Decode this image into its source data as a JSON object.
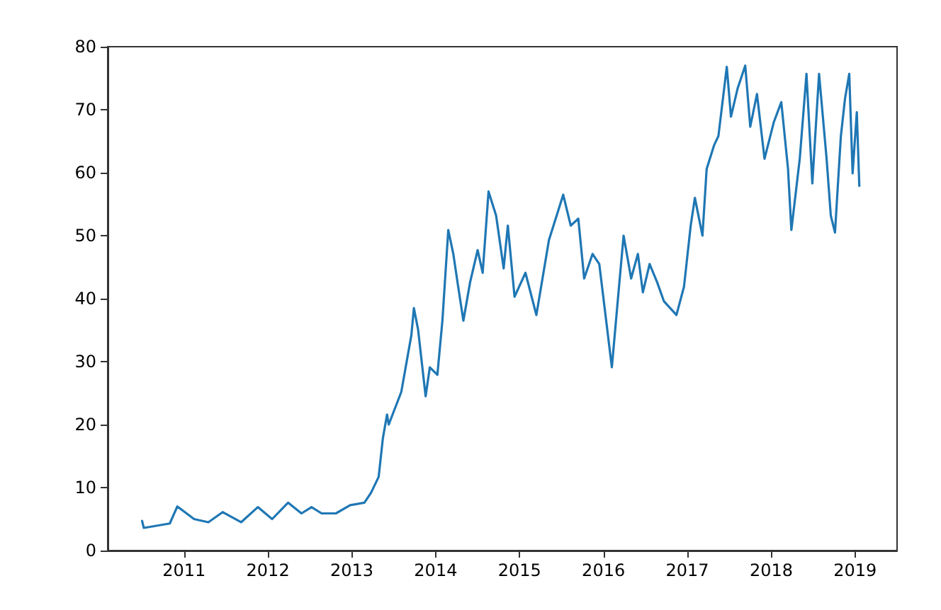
{
  "chart_data": {
    "type": "line",
    "xlim": [
      2010.09,
      2019.5
    ],
    "xticks": [
      2011,
      2012,
      2013,
      2014,
      2015,
      2016,
      2017,
      2018,
      2019
    ],
    "ylim": [
      0,
      80
    ],
    "yticks": [
      0,
      10,
      20,
      30,
      40,
      50,
      60,
      70,
      80
    ],
    "grid": false,
    "marker": "none",
    "line_style": "solid",
    "series": [
      {
        "color": "#1f77b4",
        "x": [
          2010.5,
          2010.52,
          2010.83,
          2010.92,
          2011.12,
          2011.29,
          2011.46,
          2011.68,
          2011.88,
          2012.05,
          2012.24,
          2012.4,
          2012.52,
          2012.64,
          2012.81,
          2012.98,
          2013.15,
          2013.23,
          2013.32,
          2013.37,
          2013.42,
          2013.44,
          2013.59,
          2013.71,
          2013.74,
          2013.79,
          2013.88,
          2013.93,
          2014.02,
          2014.08,
          2014.15,
          2014.21,
          2014.26,
          2014.33,
          2014.41,
          2014.5,
          2014.56,
          2014.63,
          2014.72,
          2014.81,
          2014.86,
          2014.94,
          2015.07,
          2015.2,
          2015.35,
          2015.52,
          2015.61,
          2015.7,
          2015.77,
          2015.87,
          2015.95,
          2016.1,
          2016.19,
          2016.24,
          2016.33,
          2016.41,
          2016.47,
          2016.55,
          2016.64,
          2016.72,
          2016.87,
          2016.96,
          2017.04,
          2017.09,
          2017.18,
          2017.23,
          2017.32,
          2017.37,
          2017.47,
          2017.52,
          2017.6,
          2017.69,
          2017.75,
          2017.83,
          2017.92,
          2018.03,
          2018.12,
          2018.2,
          2018.24,
          2018.34,
          2018.42,
          2018.49,
          2018.57,
          2018.66,
          2018.71,
          2018.76,
          2018.83,
          2018.88,
          2018.93,
          2018.97,
          2019.02,
          2019.05
        ],
        "values": [
          4.7,
          3.6,
          4.3,
          7.0,
          5.0,
          4.5,
          6.1,
          4.5,
          6.9,
          5.0,
          7.6,
          5.9,
          6.9,
          5.9,
          5.9,
          7.2,
          7.6,
          9.2,
          11.7,
          17.8,
          21.6,
          20.0,
          25.2,
          34.2,
          38.5,
          35.1,
          24.5,
          29.1,
          27.9,
          36.5,
          50.9,
          47.1,
          42.6,
          36.5,
          42.6,
          47.7,
          44.1,
          57.0,
          53.2,
          44.8,
          51.6,
          40.3,
          44.1,
          37.4,
          49.3,
          56.5,
          51.6,
          52.7,
          43.2,
          47.1,
          45.5,
          29.1,
          42.6,
          50.0,
          43.2,
          47.1,
          41.0,
          45.5,
          42.6,
          39.6,
          37.4,
          41.9,
          51.6,
          56.0,
          50.0,
          60.6,
          64.4,
          65.8,
          76.8,
          68.9,
          73.4,
          77.0,
          67.3,
          72.5,
          62.2,
          68.0,
          71.2,
          60.6,
          50.9,
          62.2,
          75.7,
          58.3,
          75.7,
          62.2,
          53.2,
          50.5,
          65.8,
          71.8,
          75.7,
          59.9,
          69.6,
          57.9
        ]
      }
    ]
  }
}
